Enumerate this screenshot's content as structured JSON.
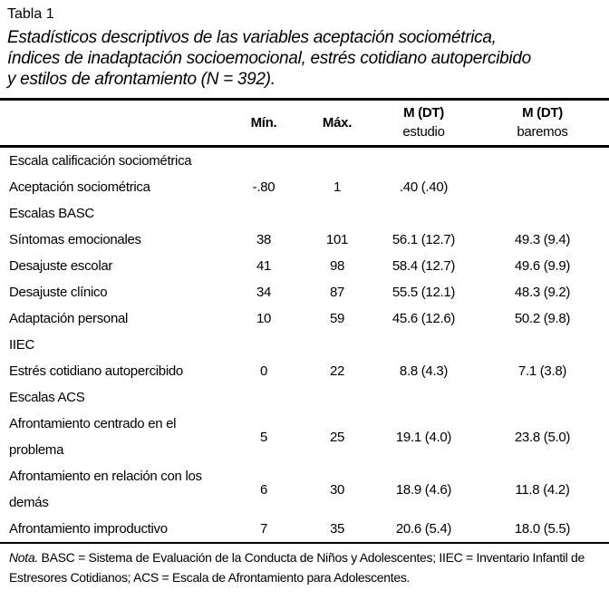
{
  "table": {
    "label": "Tabla 1",
    "title_lines": [
      "Estadísticos descriptivos de las variables aceptación sociométrica,",
      "índices de inadaptación socioemocional, estrés cotidiano autopercibido",
      "y estilos de afrontamiento (N = 392)."
    ],
    "columns": {
      "min": "Mín.",
      "max": "Máx.",
      "estudio": {
        "line1": "M (DT)",
        "line2": "estudio"
      },
      "baremos": {
        "line1": "M (DT)",
        "line2": "baremos"
      }
    },
    "rows": [
      {
        "type": "section",
        "label": "Escala calificación sociométrica",
        "min": "",
        "max": "",
        "estudio": "",
        "baremos": ""
      },
      {
        "type": "data",
        "label": "Aceptación sociométrica",
        "min": "-.80",
        "max": "1",
        "estudio": ".40 (.40)",
        "baremos": ""
      },
      {
        "type": "section",
        "label": "Escalas BASC",
        "min": "",
        "max": "",
        "estudio": "",
        "baremos": ""
      },
      {
        "type": "data",
        "label": "Síntomas emocionales",
        "min": "38",
        "max": "101",
        "estudio": "56.1 (12.7)",
        "baremos": "49.3 (9.4)"
      },
      {
        "type": "data",
        "label": "Desajuste escolar",
        "min": "41",
        "max": "98",
        "estudio": "58.4 (12.7)",
        "baremos": "49.6 (9.9)"
      },
      {
        "type": "data",
        "label": "Desajuste clínico",
        "min": "34",
        "max": "87",
        "estudio": "55.5 (12.1)",
        "baremos": "48.3 (9.2)"
      },
      {
        "type": "data",
        "label": "Adaptación personal",
        "min": "10",
        "max": "59",
        "estudio": "45.6 (12.6)",
        "baremos": "50.2 (9.8)"
      },
      {
        "type": "section",
        "label": "IIEC",
        "min": "",
        "max": "",
        "estudio": "",
        "baremos": ""
      },
      {
        "type": "data",
        "label": "Estrés cotidiano autopercibido",
        "min": "0",
        "max": "22",
        "estudio": "8.8 (4.3)",
        "baremos": "7.1 (3.8)"
      },
      {
        "type": "section",
        "label": "Escalas ACS",
        "min": "",
        "max": "",
        "estudio": "",
        "baremos": ""
      },
      {
        "type": "data",
        "label": "Afrontamiento centrado en el\nproblema",
        "min": "5",
        "max": "25",
        "estudio": "19.1 (4.0)",
        "baremos": "23.8 (5.0)"
      },
      {
        "type": "data",
        "label": "Afrontamiento en relación con los\ndemás",
        "min": "6",
        "max": "30",
        "estudio": "18.9 (4.6)",
        "baremos": "11.8 (4.2)"
      },
      {
        "type": "data",
        "label": "Afrontamiento improductivo",
        "min": "7",
        "max": "35",
        "estudio": "20.6 (5.4)",
        "baremos": "18.0 (5.5)"
      }
    ],
    "note": {
      "prefix": "Nota.",
      "text": " BASC = Sistema de Evaluación de la Conducta de Niños y Adolescentes; IIEC = Inventario Infantil de Estresores Cotidianos; ACS = Escala de Afrontamiento para Adolescentes."
    }
  },
  "colors": {
    "text": "#000000",
    "background": "#ffffff",
    "rule": "#000000"
  }
}
